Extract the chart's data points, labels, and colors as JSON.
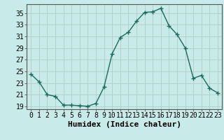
{
  "x": [
    0,
    1,
    2,
    3,
    4,
    5,
    6,
    7,
    8,
    9,
    10,
    11,
    12,
    13,
    14,
    15,
    16,
    17,
    18,
    19,
    20,
    21,
    22,
    23
  ],
  "y": [
    24.5,
    23.2,
    21.0,
    20.7,
    19.2,
    19.2,
    19.1,
    19.0,
    19.5,
    22.3,
    28.0,
    30.8,
    31.7,
    33.6,
    35.1,
    35.2,
    35.8,
    32.8,
    31.3,
    29.0,
    23.8,
    24.3,
    22.1,
    21.3
  ],
  "line_color": "#1a6b5e",
  "marker": "+",
  "marker_size": 4,
  "background_color": "#c8eae8",
  "grid_color": "#b0cec8",
  "xlabel": "Humidex (Indice chaleur)",
  "xlim": [
    -0.5,
    23.5
  ],
  "ylim": [
    18.5,
    36.5
  ],
  "yticks": [
    19,
    21,
    23,
    25,
    27,
    29,
    31,
    33,
    35
  ],
  "xtick_labels": [
    "0",
    "1",
    "2",
    "3",
    "4",
    "5",
    "6",
    "7",
    "8",
    "9",
    "10",
    "11",
    "12",
    "13",
    "14",
    "15",
    "16",
    "17",
    "18",
    "19",
    "20",
    "21",
    "22",
    "23"
  ],
  "spine_color": "#555555",
  "xlabel_fontsize": 8,
  "tick_fontsize": 7
}
